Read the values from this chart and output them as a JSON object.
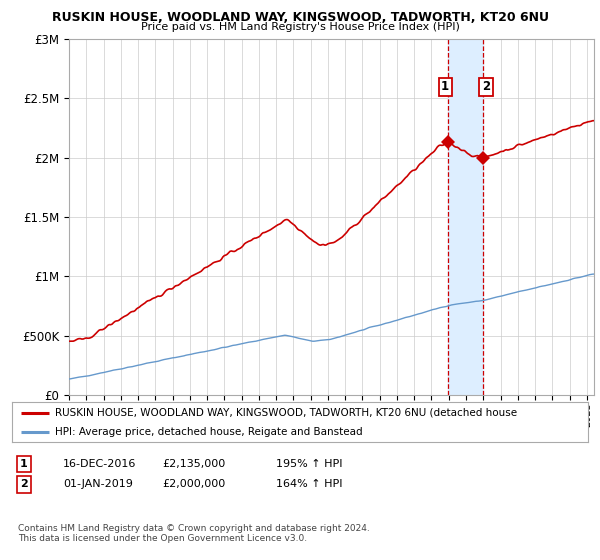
{
  "title": "RUSKIN HOUSE, WOODLAND WAY, KINGSWOOD, TADWORTH, KT20 6NU",
  "subtitle": "Price paid vs. HM Land Registry's House Price Index (HPI)",
  "legend_line1": "RUSKIN HOUSE, WOODLAND WAY, KINGSWOOD, TADWORTH, KT20 6NU (detached house",
  "legend_line2": "HPI: Average price, detached house, Reigate and Banstead",
  "annotation1_date": "16-DEC-2016",
  "annotation1_price": 2135000,
  "annotation1_hpi": "195% ↑ HPI",
  "annotation2_date": "01-JAN-2019",
  "annotation2_price": 2000000,
  "annotation2_hpi": "164% ↑ HPI",
  "footer": "Contains HM Land Registry data © Crown copyright and database right 2024.\nThis data is licensed under the Open Government Licence v3.0.",
  "vline_date": "2016-12-16",
  "vline2_date": "2019-01-01",
  "red_line_color": "#cc0000",
  "blue_line_color": "#6699cc",
  "highlight_color": "#ddeeff",
  "background_color": "#ffffff",
  "grid_color": "#cccccc",
  "ylim": [
    0,
    3000000
  ],
  "yticks": [
    0,
    500000,
    1000000,
    1500000,
    2000000,
    2500000,
    3000000
  ],
  "ytick_labels": [
    "£0",
    "£500K",
    "£1M",
    "£1.5M",
    "£2M",
    "£2.5M",
    "£3M"
  ],
  "xstart": "1995-01-01",
  "xend": "2025-06-01"
}
